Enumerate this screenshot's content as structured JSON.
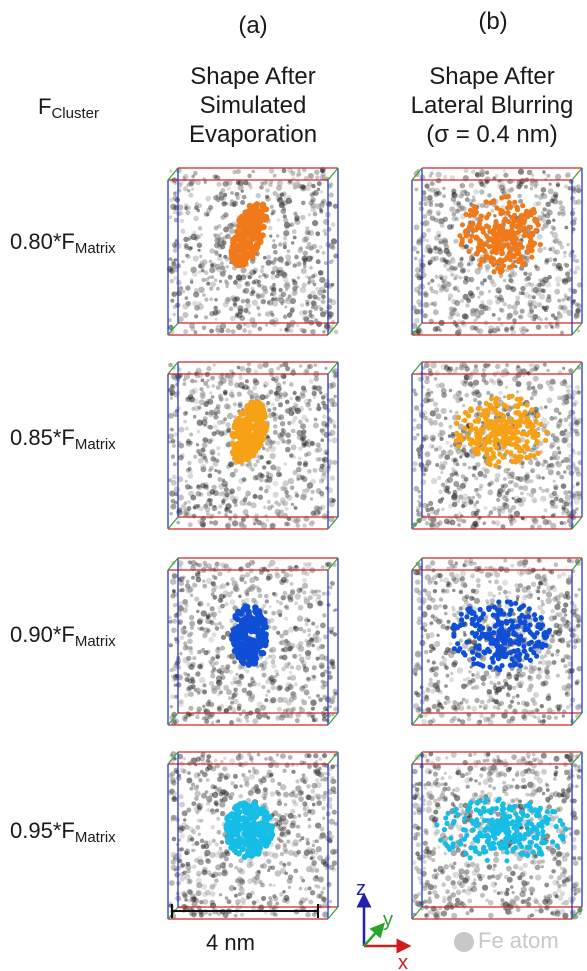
{
  "columns": [
    {
      "letter": "(a)",
      "title_lines": [
        "Shape After",
        "Simulated",
        "Evaporation"
      ]
    },
    {
      "letter": "(b)",
      "title_lines": [
        "Shape After",
        "Lateral Blurring",
        "(σ = 0.4 nm)"
      ]
    }
  ],
  "row_header": {
    "symbol": "F",
    "subscript": "Cluster"
  },
  "rows": [
    {
      "factor": "0.80*F",
      "subscript": "Matrix",
      "color": "#f07a1a"
    },
    {
      "factor": "0.85*F",
      "subscript": "Matrix",
      "color": "#f6a116"
    },
    {
      "factor": "0.90*F",
      "subscript": "Matrix",
      "color": "#0f4fd6"
    },
    {
      "factor": "0.95*F",
      "subscript": "Matrix",
      "color": "#16bde6"
    }
  ],
  "scale_bar": {
    "label": "4 nm"
  },
  "axes": {
    "z": "z",
    "y": "y",
    "x": "x"
  },
  "axis_colors": {
    "z": "#1f1fb0",
    "y": "#2aa52a",
    "x": "#d21c1c"
  },
  "legend": {
    "label": "Fe atom",
    "color": "#c8c8c8"
  },
  "box_colors": {
    "red": "#d22424",
    "blue": "#2438c8",
    "green": "#3aa53a"
  }
}
